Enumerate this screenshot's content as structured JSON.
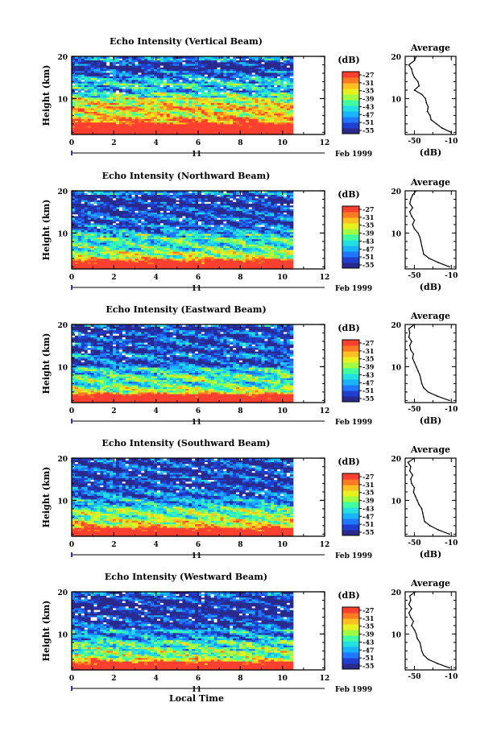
{
  "chart_data": [
    {
      "type": "heatmap",
      "title": "Echo Intensity (Vertical Beam)",
      "ylabel": "Height (km)",
      "x_ticks": [
        "0",
        "2",
        "4",
        "6",
        "8",
        "10",
        "12"
      ],
      "y_ticks": [
        "10",
        "20"
      ],
      "xlim": [
        0,
        12
      ],
      "ylim": [
        1.5,
        20
      ],
      "data_end_x": 10.5,
      "date_day": "11",
      "date_label": "Feb 1999",
      "colorbar_unit": "(dB)",
      "colorbar_ticks": [
        "-27",
        "-31",
        "-35",
        "-39",
        "-43",
        "-47",
        "-51",
        "-55"
      ],
      "profile": {
        "title": "Average",
        "xlabel": "(dB)",
        "x_ticks": [
          "-50",
          "-10"
        ],
        "y_ticks": [
          "10",
          "20"
        ],
        "xlim": [
          -60,
          -5
        ],
        "ylim": [
          1.5,
          20
        ],
        "heights": [
          2,
          3,
          4,
          5,
          6,
          7,
          8,
          9,
          10,
          11,
          12,
          13,
          14,
          15,
          16,
          17,
          18,
          19,
          20
        ],
        "values": [
          -10,
          -20,
          -26,
          -32,
          -33,
          -36,
          -35,
          -37,
          -38,
          -42,
          -50,
          -45,
          -46,
          -50,
          -52,
          -53,
          -56,
          -50,
          -48
        ]
      }
    },
    {
      "type": "heatmap",
      "title": "Echo Intensity (Northward Beam)",
      "ylabel": "Height (km)",
      "x_ticks": [
        "0",
        "2",
        "4",
        "6",
        "8",
        "10",
        "12"
      ],
      "y_ticks": [
        "10",
        "20"
      ],
      "xlim": [
        0,
        12
      ],
      "ylim": [
        1.5,
        20
      ],
      "data_end_x": 10.5,
      "date_day": "11",
      "date_label": "Feb 1999",
      "colorbar_unit": "(dB)",
      "colorbar_ticks": [
        "-27",
        "-31",
        "-35",
        "-39",
        "-43",
        "-47",
        "-51",
        "-55"
      ],
      "profile": {
        "title": "Average",
        "xlabel": "(dB)",
        "x_ticks": [
          "-50",
          "-10"
        ],
        "y_ticks": [
          "10",
          "20"
        ],
        "xlim": [
          -60,
          -5
        ],
        "ylim": [
          1.5,
          20
        ],
        "heights": [
          2,
          3,
          4,
          5,
          6,
          7,
          8,
          9,
          10,
          11,
          12,
          13,
          14,
          15,
          16,
          17,
          18,
          19,
          20
        ],
        "values": [
          -12,
          -24,
          -34,
          -40,
          -41,
          -42,
          -43,
          -44,
          -46,
          -50,
          -52,
          -50,
          -53,
          -55,
          -52,
          -55,
          -54,
          -52,
          -48
        ]
      }
    },
    {
      "type": "heatmap",
      "title": "Echo Intensity (Eastward Beam)",
      "ylabel": "Height (km)",
      "x_ticks": [
        "0",
        "2",
        "4",
        "6",
        "8",
        "10",
        "12"
      ],
      "y_ticks": [
        "10",
        "20"
      ],
      "xlim": [
        0,
        12
      ],
      "ylim": [
        1.5,
        20
      ],
      "data_end_x": 10.5,
      "date_day": "11",
      "date_label": "Feb 1999",
      "colorbar_unit": "(dB)",
      "colorbar_ticks": [
        "-27",
        "-31",
        "-35",
        "-39",
        "-43",
        "-47",
        "-51",
        "-55"
      ],
      "profile": {
        "title": "Average",
        "xlabel": "(dB)",
        "x_ticks": [
          "-50",
          "-10"
        ],
        "y_ticks": [
          "10",
          "20"
        ],
        "xlim": [
          -60,
          -5
        ],
        "ylim": [
          1.5,
          20
        ],
        "heights": [
          2,
          3,
          4,
          5,
          6,
          7,
          8,
          9,
          10,
          11,
          12,
          13,
          14,
          15,
          16,
          17,
          18,
          19,
          20
        ],
        "values": [
          -12,
          -25,
          -35,
          -40,
          -42,
          -43,
          -44,
          -46,
          -48,
          -50,
          -52,
          -51,
          -54,
          -55,
          -53,
          -56,
          -55,
          -56,
          -50
        ]
      }
    },
    {
      "type": "heatmap",
      "title": "Echo Intensity (Southward Beam)",
      "ylabel": "Height (km)",
      "x_ticks": [
        "0",
        "2",
        "4",
        "6",
        "8",
        "10",
        "12"
      ],
      "y_ticks": [
        "10",
        "20"
      ],
      "xlim": [
        0,
        12
      ],
      "ylim": [
        1.5,
        20
      ],
      "data_end_x": 10.5,
      "date_day": "11",
      "date_label": "Feb 1999",
      "colorbar_unit": "(dB)",
      "colorbar_ticks": [
        "-27",
        "-31",
        "-35",
        "-39",
        "-43",
        "-47",
        "-51",
        "-55"
      ],
      "profile": {
        "title": "Average",
        "xlabel": "(dB)",
        "x_ticks": [
          "-50",
          "-10"
        ],
        "y_ticks": [
          "10",
          "20"
        ],
        "xlim": [
          -60,
          -5
        ],
        "ylim": [
          1.5,
          20
        ],
        "heights": [
          2,
          3,
          4,
          5,
          6,
          7,
          8,
          9,
          10,
          11,
          12,
          13,
          14,
          15,
          16,
          17,
          18,
          19,
          20
        ],
        "values": [
          -12,
          -24,
          -33,
          -39,
          -40,
          -41,
          -42,
          -45,
          -47,
          -49,
          -51,
          -50,
          -53,
          -54,
          -52,
          -55,
          -54,
          -57,
          -50
        ]
      }
    },
    {
      "type": "heatmap",
      "title": "Echo Intensity (Westward Beam)",
      "ylabel": "Height (km)",
      "x_ticks": [
        "0",
        "2",
        "4",
        "6",
        "8",
        "10",
        "12"
      ],
      "y_ticks": [
        "10",
        "20"
      ],
      "xlim": [
        0,
        12
      ],
      "ylim": [
        1.5,
        20
      ],
      "data_end_x": 10.5,
      "date_day": "11",
      "date_label": "Feb 1999",
      "colorbar_unit": "(dB)",
      "colorbar_ticks": [
        "-27",
        "-31",
        "-35",
        "-39",
        "-43",
        "-47",
        "-51",
        "-55"
      ],
      "xlabel": "Local Time",
      "profile": {
        "title": "Average",
        "xlabel": "",
        "x_ticks": [
          "-50",
          "-10"
        ],
        "y_ticks": [
          "10",
          "20"
        ],
        "xlim": [
          -60,
          -5
        ],
        "ylim": [
          1.5,
          20
        ],
        "heights": [
          2,
          3,
          4,
          5,
          6,
          7,
          8,
          9,
          10,
          11,
          12,
          13,
          14,
          15,
          16,
          17,
          18,
          19,
          20
        ],
        "values": [
          -12,
          -25,
          -35,
          -40,
          -42,
          -43,
          -44,
          -47,
          -48,
          -50,
          -53,
          -51,
          -54,
          -56,
          -53,
          -56,
          -54,
          -55,
          -49
        ]
      }
    }
  ],
  "colors": {
    "colormap": [
      "#2a2a8c",
      "#1f3fd0",
      "#1f78ff",
      "#19b4ff",
      "#22e0e0",
      "#40ffa0",
      "#a0ff40",
      "#e8f020",
      "#ffc020",
      "#ff7a20",
      "#ff4030"
    ],
    "max_color": "#ff4030",
    "missing": "#ffffff",
    "date_marker": "#3030c0"
  }
}
